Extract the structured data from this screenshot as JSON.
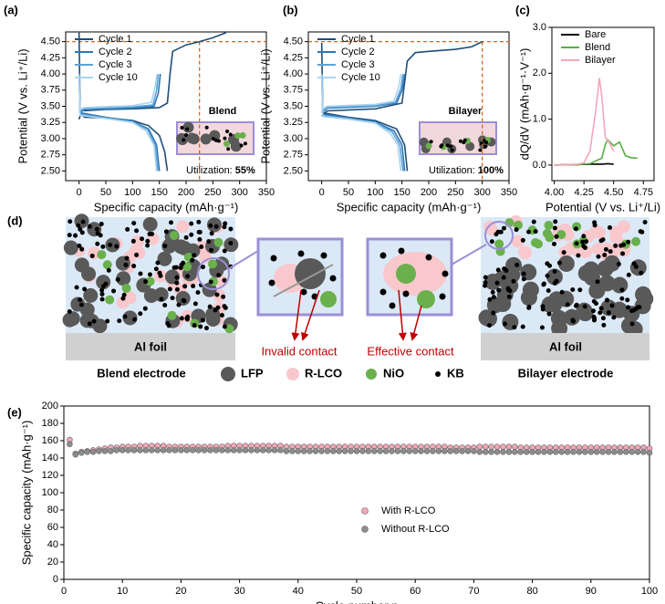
{
  "chart_data": [
    {
      "type": "line",
      "panel_label": "(a)",
      "x_label": "Specific capacity (mAh·g⁻¹)",
      "y_label": "Potential (V vs. Li⁺/Li)",
      "xlim": [
        -25,
        350
      ],
      "ylim": [
        2.35,
        4.65
      ],
      "xticks": [
        0,
        50,
        100,
        150,
        200,
        250,
        300,
        350
      ],
      "yticks": [
        {
          "value": 2.5,
          "label": "2.50"
        },
        {
          "value": 2.75,
          "label": "2.75"
        },
        {
          "value": 3.0,
          "label": "3.00"
        },
        {
          "value": 3.25,
          "label": "3.25"
        },
        {
          "value": 3.5,
          "label": "3.50"
        },
        {
          "value": 3.75,
          "label": "3.75"
        },
        {
          "value": 4.0,
          "label": "4.00"
        },
        {
          "value": 4.25,
          "label": "4.25"
        },
        {
          "value": 4.5,
          "label": "4.50"
        }
      ],
      "legend": "upper left",
      "ref_lines": {
        "y": 4.5,
        "x": 225,
        "color": "#d2691e"
      },
      "inset_label": "Blend",
      "utilization_label": "Utilization: ",
      "utilization_value": "55%",
      "series": [
        {
          "name": "Cycle 1",
          "color": "#1f4e79",
          "x": [
            0,
            5,
            50,
            100,
            150,
            165,
            170,
            175,
            200,
            225,
            250,
            275,
            null,
            0,
            2,
            10,
            50,
            100,
            130,
            150,
            160,
            165
          ],
          "values": [
            3.3,
            3.43,
            3.45,
            3.46,
            3.48,
            3.55,
            4.0,
            4.35,
            4.45,
            4.5,
            4.56,
            4.64,
            null,
            4.64,
            3.4,
            3.33,
            3.32,
            3.28,
            3.2,
            3.05,
            2.8,
            2.5
          ]
        },
        {
          "name": "Cycle 2",
          "color": "#2e75b6",
          "x": [
            0,
            10,
            100,
            140,
            148,
            152,
            null,
            0,
            2,
            50,
            100,
            130,
            145,
            150
          ],
          "values": [
            3.4,
            3.45,
            3.47,
            3.5,
            3.7,
            4.0,
            null,
            4.0,
            3.4,
            3.33,
            3.27,
            3.15,
            2.9,
            2.5
          ]
        },
        {
          "name": "Cycle 3",
          "color": "#5ba3d9",
          "x": [
            0,
            10,
            100,
            138,
            145,
            148,
            null,
            0,
            2,
            50,
            100,
            128,
            142,
            147
          ],
          "values": [
            3.42,
            3.46,
            3.49,
            3.52,
            3.75,
            4.0,
            null,
            4.0,
            3.38,
            3.32,
            3.26,
            3.14,
            2.9,
            2.5
          ]
        },
        {
          "name": "Cycle 10",
          "color": "#a9d4f0",
          "x": [
            0,
            10,
            100,
            135,
            142,
            146,
            null,
            0,
            2,
            50,
            100,
            125,
            140,
            145
          ],
          "values": [
            3.45,
            3.48,
            3.51,
            3.56,
            3.8,
            4.0,
            null,
            4.0,
            3.36,
            3.31,
            3.25,
            3.12,
            2.9,
            2.5
          ]
        }
      ]
    },
    {
      "type": "line",
      "panel_label": "(b)",
      "x_label": "Specific capacity (mAh·g⁻¹)",
      "y_label": "Potential (V vs. Li⁺/Li)",
      "xlim": [
        -25,
        350
      ],
      "ylim": [
        2.35,
        4.65
      ],
      "xticks": [
        0,
        50,
        100,
        150,
        200,
        250,
        300,
        350
      ],
      "yticks": [
        {
          "value": 2.5,
          "label": "2.50"
        },
        {
          "value": 2.75,
          "label": "2.75"
        },
        {
          "value": 3.0,
          "label": "3.00"
        },
        {
          "value": 3.25,
          "label": "3.25"
        },
        {
          "value": 3.5,
          "label": "3.50"
        },
        {
          "value": 3.75,
          "label": "3.75"
        },
        {
          "value": 4.0,
          "label": "4.00"
        },
        {
          "value": 4.25,
          "label": "4.25"
        },
        {
          "value": 4.5,
          "label": "4.50"
        }
      ],
      "legend": "upper left",
      "ref_lines": {
        "y": 4.5,
        "x": 300,
        "color": "#d2691e"
      },
      "inset_label": "Bilayer",
      "utilization_label": "Utilization: ",
      "utilization_value": "100%",
      "series": [
        {
          "name": "Cycle 1",
          "color": "#1f4e79",
          "x": [
            0,
            10,
            100,
            150,
            160,
            175,
            200,
            250,
            280,
            300,
            null,
            0,
            2,
            50,
            100,
            140,
            155,
            160
          ],
          "values": [
            3.35,
            3.43,
            3.46,
            3.55,
            4.2,
            4.33,
            4.35,
            4.38,
            4.42,
            4.5,
            null,
            4.48,
            3.4,
            3.33,
            3.28,
            3.15,
            2.9,
            2.5
          ]
        },
        {
          "name": "Cycle 2",
          "color": "#2e75b6",
          "x": [
            0,
            10,
            100,
            140,
            150,
            155,
            null,
            0,
            2,
            50,
            100,
            135,
            150,
            155
          ],
          "values": [
            3.4,
            3.47,
            3.5,
            3.55,
            3.75,
            4.0,
            null,
            4.0,
            3.38,
            3.32,
            3.26,
            3.12,
            2.9,
            2.5
          ]
        },
        {
          "name": "Cycle 3",
          "color": "#5ba3d9",
          "x": [
            0,
            10,
            100,
            138,
            148,
            152,
            null,
            0,
            2,
            50,
            100,
            132,
            146,
            152
          ],
          "values": [
            3.42,
            3.48,
            3.51,
            3.56,
            3.78,
            4.0,
            null,
            4.0,
            3.36,
            3.31,
            3.25,
            3.1,
            2.9,
            2.5
          ]
        },
        {
          "name": "Cycle 10",
          "color": "#a9d4f0",
          "x": [
            0,
            10,
            100,
            135,
            144,
            148,
            null,
            0,
            2,
            50,
            100,
            128,
            142,
            148
          ],
          "values": [
            3.45,
            3.5,
            3.53,
            3.58,
            3.8,
            4.0,
            null,
            4.0,
            3.34,
            3.3,
            3.24,
            3.08,
            2.9,
            2.5
          ]
        }
      ]
    },
    {
      "type": "line",
      "panel_label": "(c)",
      "x_label": "Potential (V vs. Li⁺/Li)",
      "y_label": "dQ/dV (mAh·g⁻¹·V⁻¹)",
      "xlim": [
        3.98,
        4.84
      ],
      "ylim": [
        -0.34,
        3.0
      ],
      "xticks": [
        {
          "value": 4.0,
          "label": "4.00"
        },
        {
          "value": 4.25,
          "label": "4.25"
        },
        {
          "value": 4.5,
          "label": "4.50"
        },
        {
          "value": 4.75,
          "label": "4.75"
        }
      ],
      "yticks": [
        {
          "value": 0,
          "label": "0.0"
        },
        {
          "value": 1,
          "label": "1.0"
        },
        {
          "value": 2,
          "label": "2.0"
        },
        {
          "value": 3,
          "label": "3.0"
        }
      ],
      "legend": "upper left",
      "series": [
        {
          "name": "Bare",
          "color": "#000000",
          "x": [
            4.0,
            4.1,
            4.2,
            4.3,
            4.4,
            4.45,
            4.5
          ],
          "values": [
            0.0,
            0.01,
            0.01,
            0.02,
            0.02,
            0.03,
            0.02
          ]
        },
        {
          "name": "Blend",
          "color": "#5aac44",
          "x": [
            4.0,
            4.2,
            4.3,
            4.4,
            4.43,
            4.45,
            4.5,
            4.55,
            4.6,
            4.65,
            4.7
          ],
          "values": [
            0.0,
            0.01,
            0.03,
            0.15,
            0.45,
            0.55,
            0.42,
            0.5,
            0.2,
            0.16,
            0.15
          ]
        },
        {
          "name": "Bilayer",
          "color": "#f4a6b8",
          "x": [
            4.0,
            4.2,
            4.25,
            4.3,
            4.35,
            4.38,
            4.4,
            4.43,
            4.46,
            4.5
          ],
          "values": [
            0.0,
            0.02,
            0.05,
            0.3,
            1.2,
            1.9,
            1.5,
            0.6,
            0.5,
            0.3
          ]
        }
      ]
    },
    {
      "type": "scatter",
      "panel_label": "(e)",
      "x_label": "Cycle number n",
      "y_label": "Specific capacity (mAh·g⁻¹)",
      "xlim": [
        0,
        100
      ],
      "ylim": [
        0,
        200
      ],
      "xticks": [
        0,
        10,
        20,
        30,
        40,
        50,
        60,
        70,
        80,
        90,
        100
      ],
      "yticks": [
        0,
        20,
        40,
        60,
        80,
        100,
        120,
        140,
        160,
        180,
        200
      ],
      "legend": "center right",
      "x": [
        1,
        2,
        3,
        4,
        5,
        6,
        7,
        8,
        9,
        10,
        11,
        12,
        13,
        14,
        15,
        16,
        17,
        18,
        19,
        20,
        21,
        22,
        23,
        24,
        25,
        26,
        27,
        28,
        29,
        30,
        31,
        32,
        33,
        34,
        35,
        36,
        37,
        38,
        39,
        40,
        41,
        42,
        43,
        44,
        45,
        46,
        47,
        48,
        49,
        50,
        51,
        52,
        53,
        54,
        55,
        56,
        57,
        58,
        59,
        60,
        61,
        62,
        63,
        64,
        65,
        66,
        67,
        68,
        69,
        70,
        71,
        72,
        73,
        74,
        75,
        76,
        77,
        78,
        79,
        80,
        81,
        82,
        83,
        84,
        85,
        86,
        87,
        88,
        89,
        90,
        91,
        92,
        93,
        94,
        95,
        96,
        97,
        98,
        99,
        100
      ],
      "series": [
        {
          "name": "With R-LCO",
          "color": "#f4a6b8",
          "values": [
            161,
            145,
            147,
            148,
            149,
            150,
            151,
            152,
            152,
            153,
            153,
            153,
            154,
            154,
            154,
            154,
            154,
            153,
            153,
            153,
            153,
            153,
            153,
            153,
            153,
            153,
            153,
            154,
            154,
            154,
            154,
            154,
            154,
            154,
            154,
            154,
            154,
            153,
            153,
            153,
            153,
            153,
            153,
            153,
            153,
            153,
            153,
            153,
            153,
            153,
            153,
            153,
            153,
            153,
            153,
            153,
            153,
            153,
            153,
            153,
            153,
            153,
            153,
            153,
            153,
            152,
            152,
            152,
            152,
            152,
            153,
            153,
            153,
            153,
            153,
            153,
            153,
            152,
            152,
            152,
            152,
            152,
            152,
            152,
            152,
            152,
            152,
            152,
            152,
            152,
            152,
            152,
            152,
            152,
            152,
            152,
            152,
            152,
            152,
            151
          ]
        },
        {
          "name": "Without R-LCO",
          "color": "#8c8c8c",
          "values": [
            156,
            144,
            146,
            147,
            147,
            148,
            148,
            148,
            149,
            149,
            149,
            149,
            149,
            149,
            149,
            149,
            149,
            149,
            149,
            149,
            149,
            149,
            149,
            149,
            149,
            149,
            149,
            149,
            149,
            149,
            149,
            149,
            149,
            149,
            149,
            149,
            149,
            148,
            148,
            148,
            148,
            148,
            148,
            148,
            148,
            148,
            148,
            148,
            148,
            148,
            148,
            148,
            148,
            148,
            148,
            148,
            148,
            148,
            148,
            148,
            148,
            148,
            148,
            148,
            148,
            148,
            148,
            148,
            148,
            148,
            147,
            147,
            147,
            147,
            147,
            147,
            147,
            147,
            147,
            147,
            147,
            147,
            147,
            147,
            147,
            147,
            147,
            147,
            147,
            147,
            147,
            147,
            147,
            147,
            147,
            147,
            147,
            147,
            147,
            146
          ]
        }
      ]
    }
  ],
  "schematic": {
    "panel_label": "(d)",
    "left_foil": "Al foil",
    "invalid": "Invalid contact",
    "effective": "Effective contact",
    "left_caption": "Blend electrode",
    "legend": [
      "LFP",
      "R-LCO",
      "NiO",
      "KB"
    ],
    "right_caption": "Bilayer electrode",
    "right_foil": "Al  foil"
  }
}
